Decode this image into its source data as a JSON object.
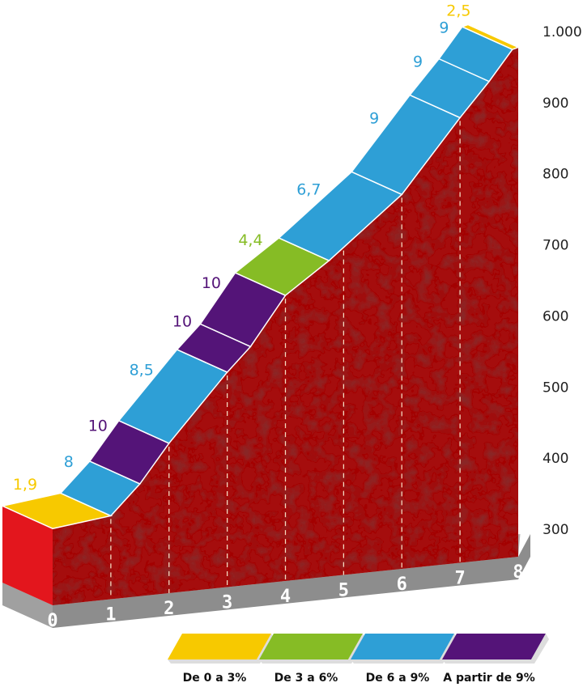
{
  "chart_data": {
    "type": "elevation_profile",
    "profile": {
      "x": [
        0,
        1,
        1.5,
        2,
        3,
        3.4,
        4,
        4.75,
        6,
        7,
        7.5,
        7.9,
        8
      ],
      "altitude": [
        302,
        320,
        365,
        422,
        522,
        558,
        630,
        679,
        772,
        880,
        931,
        976,
        979
      ]
    },
    "segments": {
      "values": [
        1.9,
        8,
        10,
        8.5,
        10,
        10,
        4.4,
        6.7,
        9,
        9,
        9,
        2.5
      ],
      "value_labels": [
        "1,9",
        "8",
        "10",
        "8,5",
        "10",
        "10",
        "4,4",
        "6,7",
        "9",
        "9",
        "9",
        "2,5"
      ],
      "colors": [
        "#f7c900",
        "#2e9fd6",
        "#541478",
        "#2e9fd6",
        "#541478",
        "#541478",
        "#86bc25",
        "#2e9fd6",
        "#2e9fd6",
        "#2e9fd6",
        "#2e9fd6",
        "#f7c900"
      ]
    },
    "xlim": [
      0,
      8
    ],
    "xticks": [
      0,
      1,
      2,
      3,
      4,
      5,
      6,
      7,
      8
    ],
    "ylim": [
      300,
      1000
    ],
    "yticks": [
      300,
      400,
      500,
      600,
      700,
      800,
      900,
      {
        "value": 1000,
        "label": "1.000"
      }
    ],
    "legend": [
      {
        "label": "De 0 a 3%",
        "color": "#f7c900"
      },
      {
        "label": "De 3 a 6%",
        "color": "#86bc25"
      },
      {
        "label": "De 6 a 9%",
        "color": "#2e9fd6"
      },
      {
        "label": "A partir de 9%",
        "color": "#541478"
      }
    ]
  }
}
